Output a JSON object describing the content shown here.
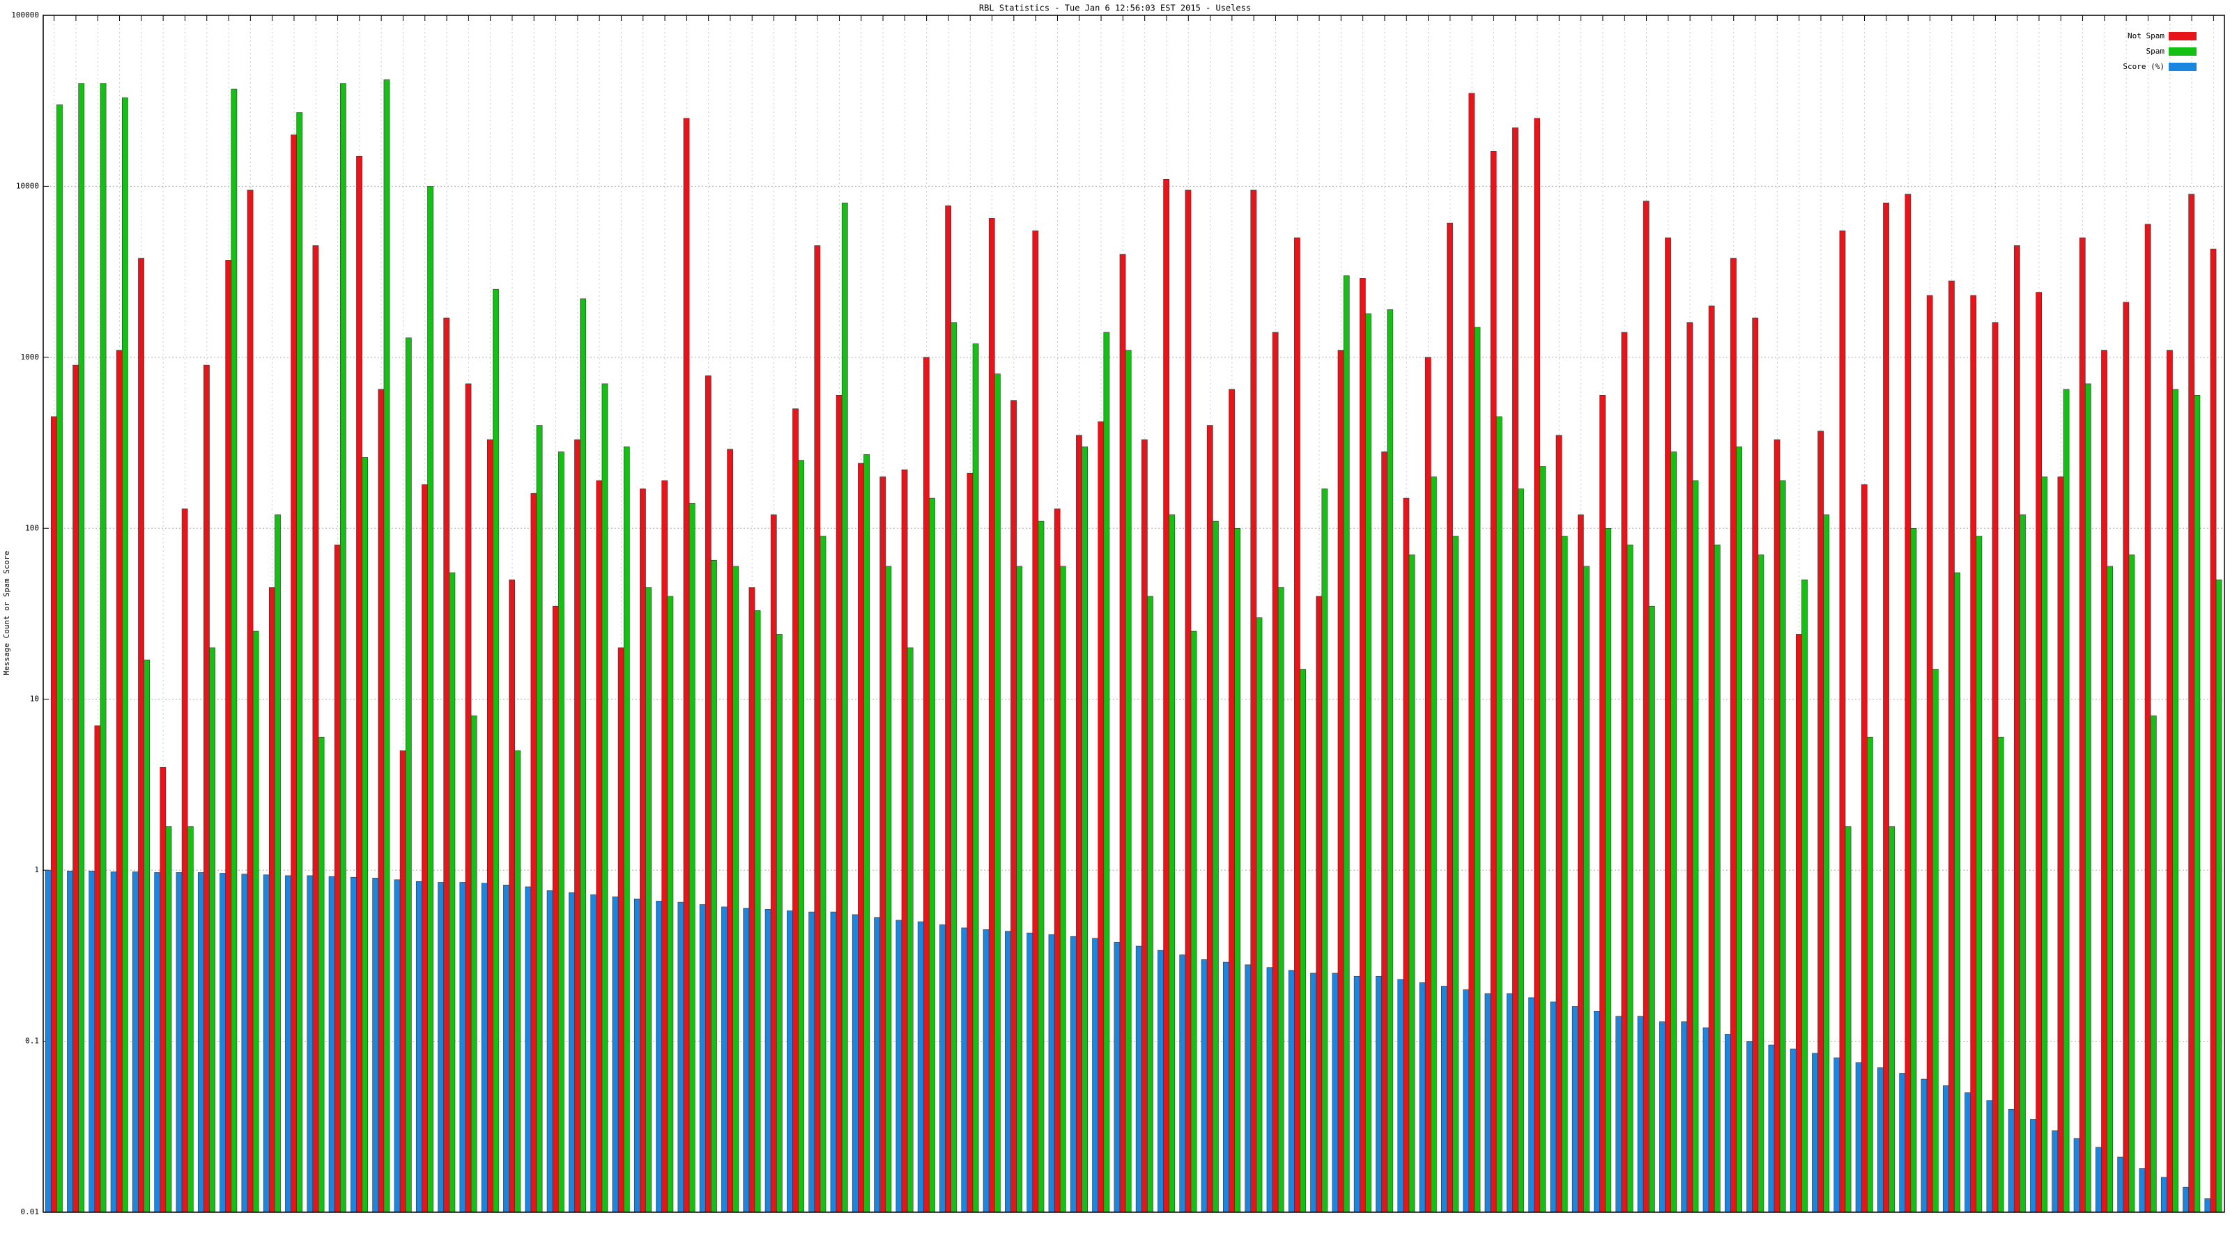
{
  "chart_data": {
    "type": "bar",
    "title": "RBL Statistics - Tue Jan  6 12:56:03 EST 2015 - Useless",
    "y_label": "Message Count or Spam Score",
    "log_scale": true,
    "grid": true,
    "legend_position": "top-right",
    "ylim": [
      0.01,
      100000
    ],
    "yticks": [
      0.01,
      0.1,
      1,
      10,
      100,
      1000,
      10000,
      100000
    ],
    "series": [
      {
        "name": "Not Spam",
        "color": "#e8141a",
        "values": [
          450,
          900,
          7,
          1100,
          3800,
          4,
          130,
          900,
          3700,
          9500,
          45,
          20000,
          4500,
          80,
          15000,
          650,
          5,
          180,
          1700,
          700,
          330,
          50,
          160,
          35,
          330,
          190,
          20,
          170,
          190,
          25000,
          780,
          290,
          45,
          120,
          500,
          4500,
          600,
          240,
          200,
          220,
          1000,
          7700,
          210,
          6500,
          560,
          5500,
          130,
          350,
          420,
          4000,
          330,
          11000,
          9500,
          400,
          650,
          9500,
          1400,
          5000,
          40,
          1100,
          2900,
          280,
          150,
          1000,
          6100,
          35000,
          16000,
          22000,
          25000,
          350,
          120,
          600,
          1400,
          8200,
          5000,
          1600,
          2000,
          3800,
          1700,
          330,
          24,
          370,
          5500,
          180,
          8000,
          9000,
          2300,
          2800,
          2300,
          1600,
          4500,
          2400,
          200,
          5000,
          1100,
          2100,
          6000,
          1100,
          9000,
          4300
        ]
      },
      {
        "name": "Spam",
        "color": "#14c014",
        "values": [
          30000,
          40000,
          40000,
          33000,
          17,
          1.8,
          1.8,
          20,
          37000,
          25,
          120,
          27000,
          6,
          40000,
          260,
          42000,
          1300,
          10000,
          55,
          8,
          2500,
          5,
          400,
          280,
          2200,
          700,
          300,
          45,
          40,
          140,
          65,
          60,
          33,
          24,
          250,
          90,
          8000,
          270,
          60,
          20,
          150,
          1600,
          1200,
          800,
          60,
          110,
          60,
          300,
          1400,
          1100,
          40,
          120,
          25,
          110,
          100,
          30,
          45,
          15,
          170,
          3000,
          1800,
          1900,
          70,
          200,
          90,
          1500,
          450,
          170,
          230,
          90,
          60,
          100,
          80,
          35,
          280,
          190,
          80,
          300,
          70,
          190,
          50,
          120,
          1.8,
          6,
          1.8,
          100,
          15,
          55,
          90,
          6,
          120,
          200,
          650,
          700,
          60,
          70,
          8,
          650,
          600,
          50
        ]
      },
      {
        "name": "Score (%)",
        "color": "#1a86e0",
        "values": [
          1,
          0.99,
          0.99,
          0.98,
          0.98,
          0.97,
          0.97,
          0.97,
          0.96,
          0.95,
          0.94,
          0.93,
          0.93,
          0.92,
          0.91,
          0.9,
          0.88,
          0.86,
          0.85,
          0.85,
          0.84,
          0.82,
          0.8,
          0.76,
          0.74,
          0.72,
          0.7,
          0.68,
          0.66,
          0.65,
          0.63,
          0.61,
          0.6,
          0.59,
          0.58,
          0.57,
          0.57,
          0.55,
          0.53,
          0.51,
          0.5,
          0.48,
          0.46,
          0.45,
          0.44,
          0.43,
          0.42,
          0.41,
          0.4,
          0.38,
          0.36,
          0.34,
          0.32,
          0.3,
          0.29,
          0.28,
          0.27,
          0.26,
          0.25,
          0.25,
          0.24,
          0.24,
          0.23,
          0.22,
          0.21,
          0.2,
          0.19,
          0.19,
          0.18,
          0.17,
          0.16,
          0.15,
          0.14,
          0.14,
          0.13,
          0.13,
          0.12,
          0.11,
          0.1,
          0.095,
          0.09,
          0.085,
          0.08,
          0.075,
          0.07,
          0.065,
          0.06,
          0.055,
          0.05,
          0.045,
          0.04,
          0.035,
          0.03,
          0.027,
          0.024,
          0.021,
          0.018,
          0.016,
          0.014,
          0.012
        ]
      }
    ]
  }
}
